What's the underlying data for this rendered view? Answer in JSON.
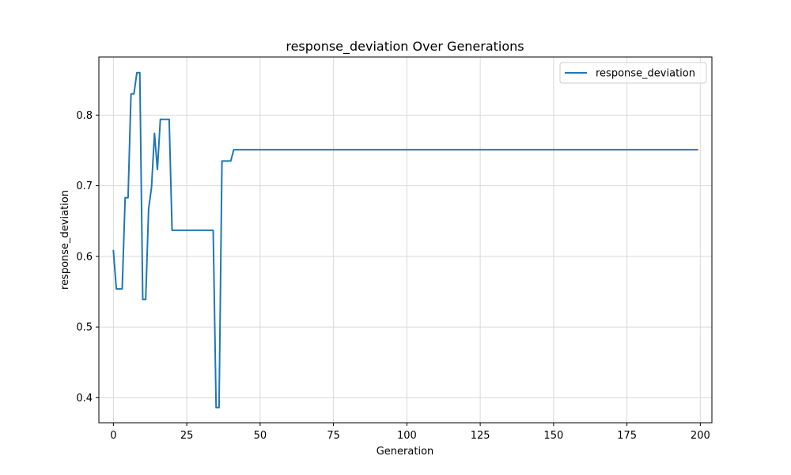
{
  "chart_data": {
    "type": "line",
    "title": "response_deviation Over Generations",
    "xlabel": "Generation",
    "ylabel": "response_deviation",
    "xlim": [
      -4.95,
      203.95
    ],
    "ylim": [
      0.3645,
      0.8822
    ],
    "xticks": [
      0,
      25,
      50,
      75,
      100,
      125,
      150,
      175,
      200
    ],
    "yticks": [
      0.4,
      0.5,
      0.6,
      0.7,
      0.8
    ],
    "ytick_labels": [
      "0.4",
      "0.5",
      "0.6",
      "0.7",
      "0.8"
    ],
    "grid": true,
    "legend": {
      "position": "upper-right",
      "entries": [
        "response_deviation"
      ]
    },
    "colors": {
      "series": "#1f77b4",
      "grid": "#d9d9d9"
    },
    "series": [
      {
        "name": "response_deviation",
        "x": [
          0,
          1,
          2,
          3,
          4,
          5,
          6,
          7,
          8,
          9,
          10,
          11,
          12,
          13,
          14,
          15,
          16,
          17,
          18,
          19,
          20,
          21,
          25,
          30,
          33,
          34,
          35,
          36,
          37,
          38,
          39,
          40,
          41,
          42,
          50,
          100,
          150,
          199
        ],
        "y": [
          0.608,
          0.554,
          0.554,
          0.554,
          0.683,
          0.683,
          0.83,
          0.83,
          0.86,
          0.86,
          0.539,
          0.539,
          0.667,
          0.698,
          0.774,
          0.723,
          0.794,
          0.794,
          0.794,
          0.794,
          0.637,
          0.637,
          0.637,
          0.637,
          0.637,
          0.637,
          0.386,
          0.386,
          0.735,
          0.735,
          0.735,
          0.735,
          0.751,
          0.751,
          0.751,
          0.751,
          0.751,
          0.751
        ]
      }
    ]
  }
}
